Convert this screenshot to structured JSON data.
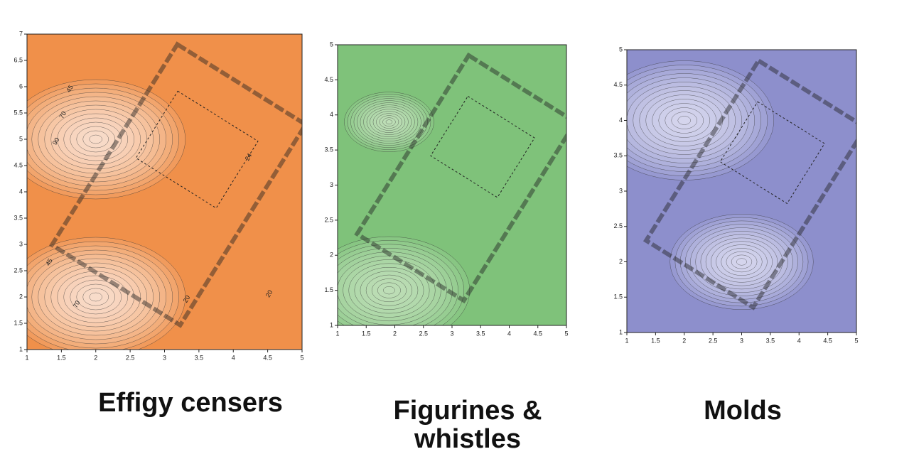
{
  "panels": [
    {
      "caption": "Effigy censers",
      "color": "#f0904a",
      "light": "#fdf1e6",
      "xlim": [
        1,
        5
      ],
      "ylim": [
        1,
        7
      ],
      "xticks": [
        1,
        1.5,
        2,
        2.5,
        3,
        3.5,
        4,
        4.5,
        5
      ],
      "yticks": [
        1,
        1.5,
        2,
        2.5,
        3,
        3.5,
        4,
        4.5,
        5,
        5.5,
        6,
        6.5,
        7
      ],
      "contour_labels": [
        "45",
        "70",
        "90",
        "70",
        "45",
        "20",
        "20",
        "24"
      ]
    },
    {
      "caption": "Figurines & whistles",
      "color": "#7fc27a",
      "light": "#cfe9c9",
      "xlim": [
        1,
        5
      ],
      "ylim": [
        1,
        5
      ],
      "xticks": [
        1,
        1.5,
        2,
        2.5,
        3,
        3.5,
        4,
        4.5,
        5
      ],
      "yticks": [
        1,
        1.5,
        2,
        2.5,
        3,
        3.5,
        4,
        4.5,
        5
      ]
    },
    {
      "caption": "Molds",
      "color": "#8d8fcc",
      "light": "#e9e8f5",
      "xlim": [
        1,
        5
      ],
      "ylim": [
        1,
        5
      ],
      "xticks": [
        1,
        1.5,
        2,
        2.5,
        3,
        3.5,
        4,
        4.5,
        5
      ],
      "yticks": [
        1,
        1.5,
        2,
        2.5,
        3,
        3.5,
        4,
        4.5,
        5
      ]
    }
  ]
}
